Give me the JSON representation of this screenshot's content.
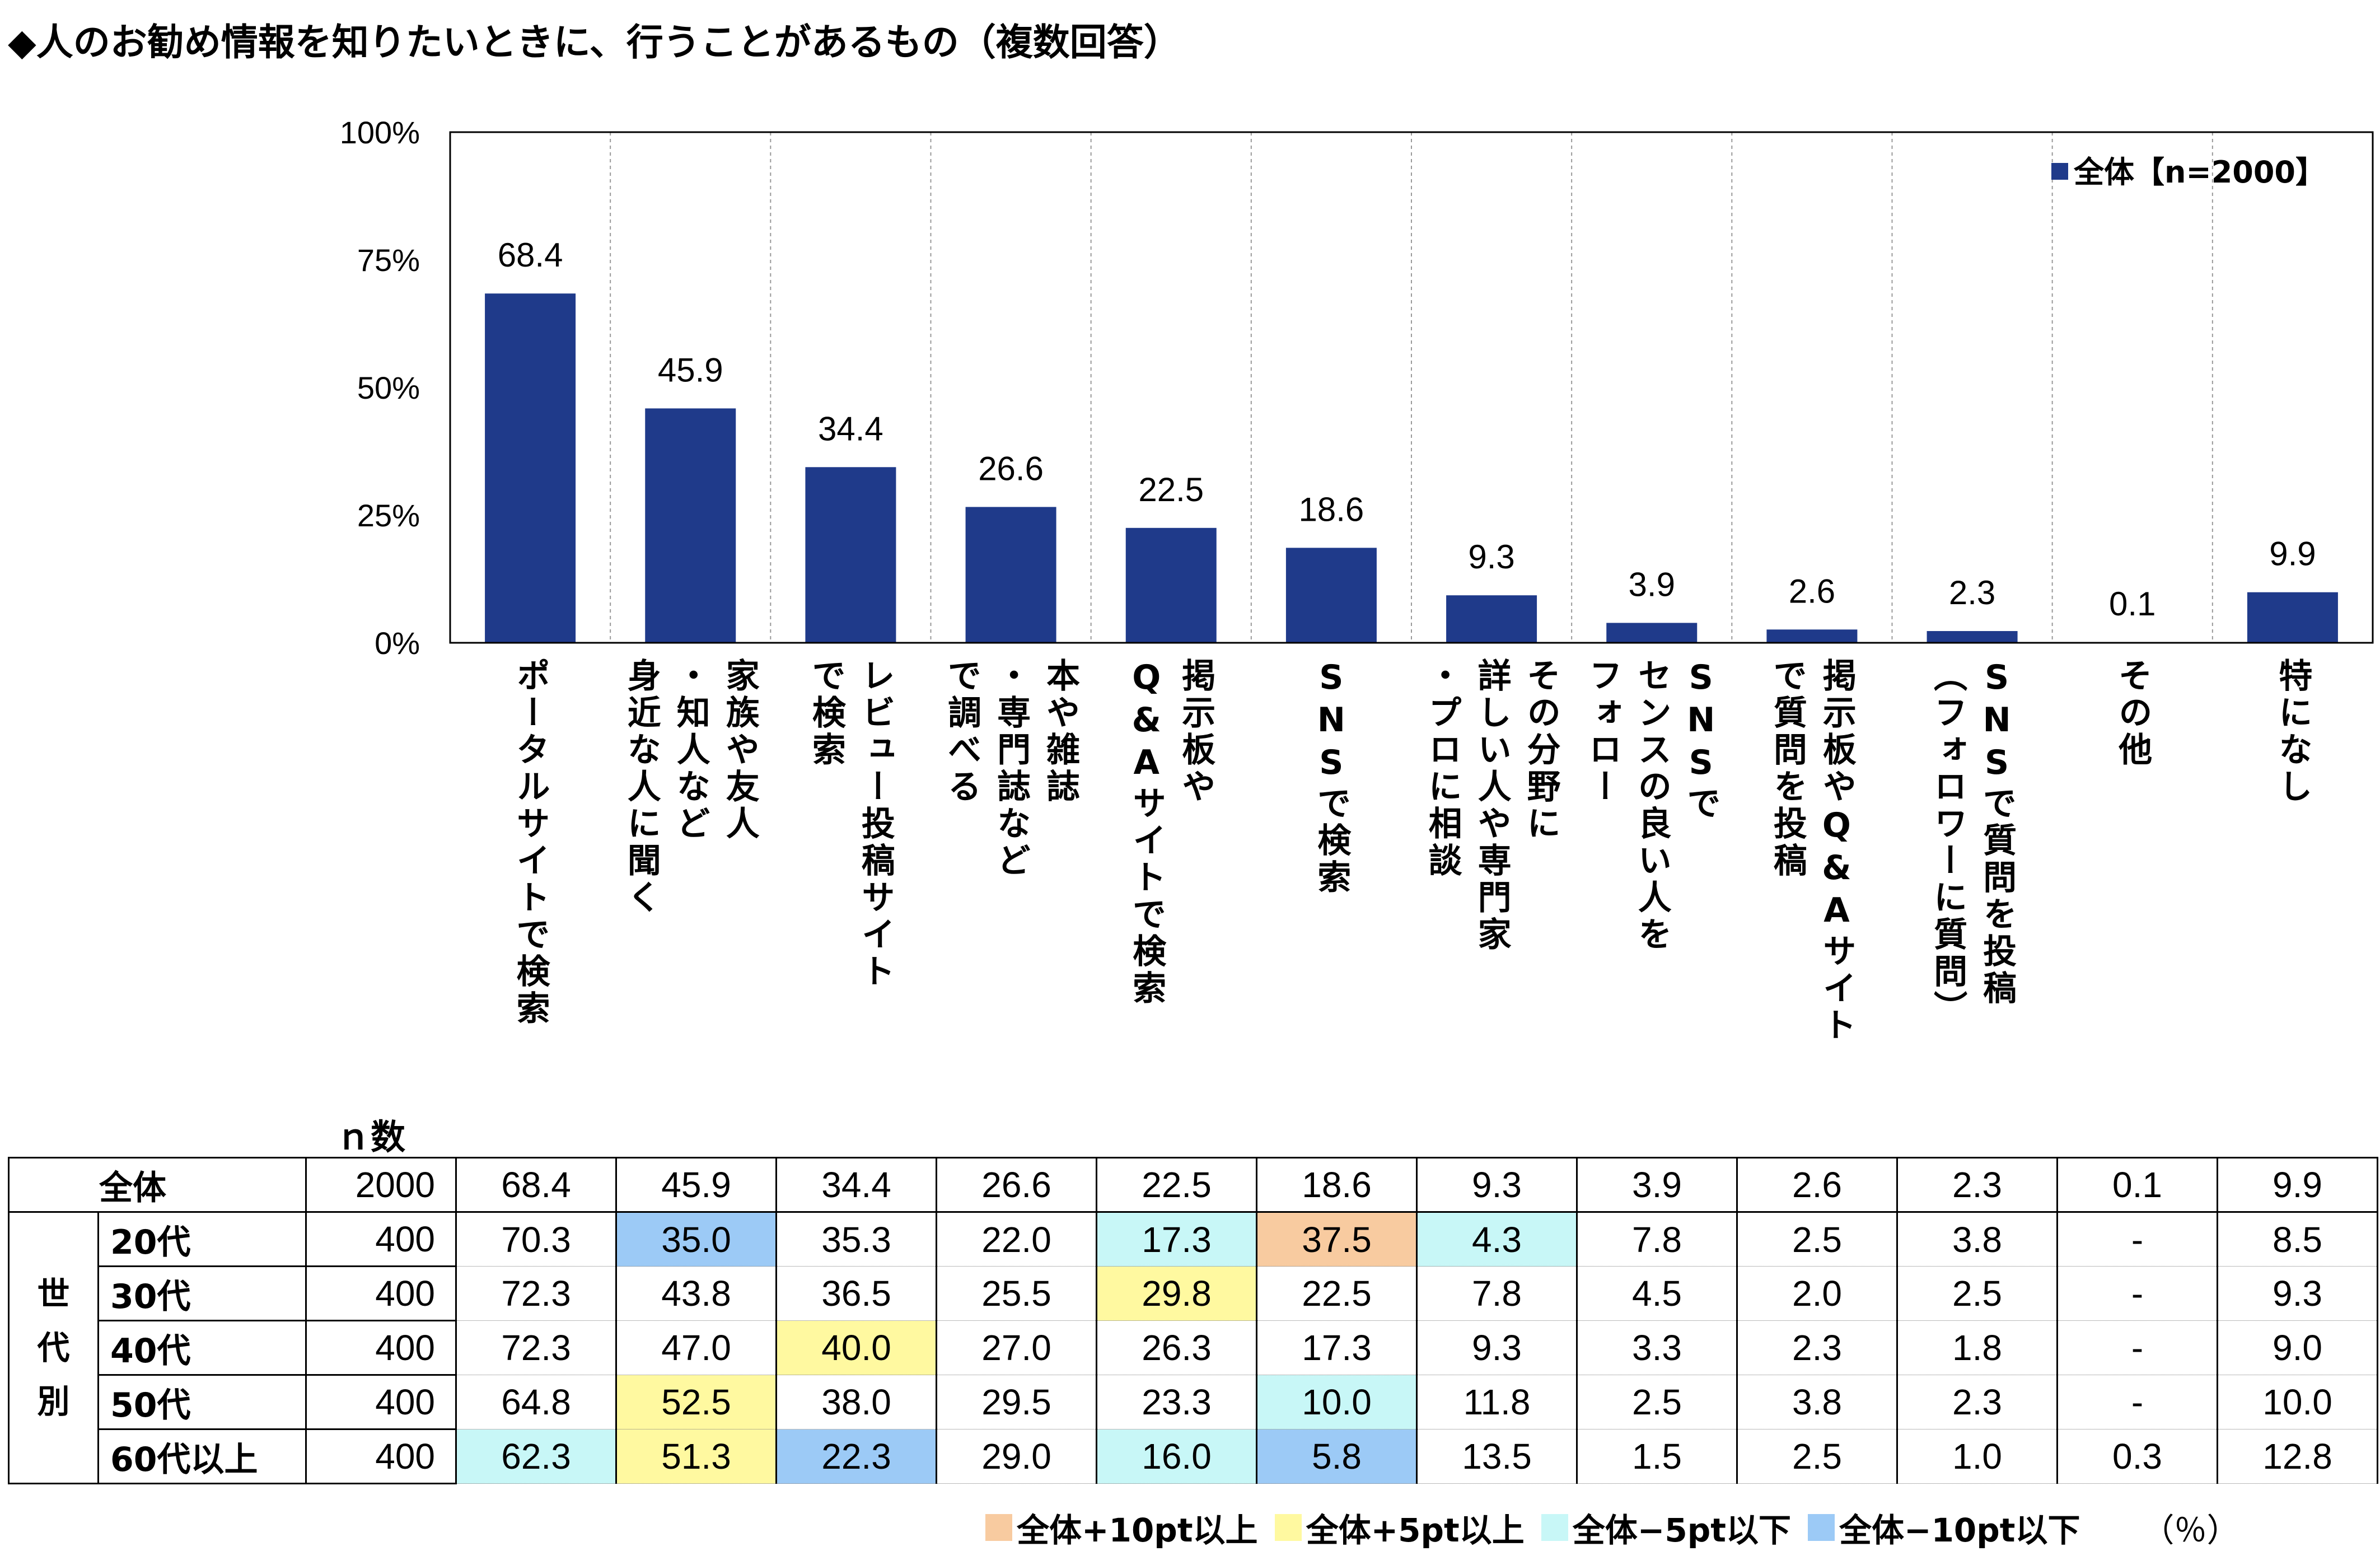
{
  "title": "◆人のお勧め情報を知りたいときに、行うことがあるもの（複数回答）",
  "chart_data": {
    "type": "bar",
    "title": "◆人のお勧め情報を知りたいときに、行うことがあるもの（複数回答）",
    "ylim": [
      0,
      100
    ],
    "y_ticks": [
      "100%",
      "75%",
      "50%",
      "25%",
      "0%"
    ],
    "grid": "vertical dotted separators",
    "legend": {
      "placement": "top-right",
      "label": "全体【n=2000】"
    },
    "bar_color": "#1f3a8a",
    "categories": [
      "ポータルサイトで検索",
      "家族や友人・知人など身近な人に聞く",
      "レビュー投稿サイトで検索",
      "本や雑誌・専門誌などで調べる",
      "掲示板やQ&Aサイトで検索",
      "SNSで検索",
      "その分野に詳しい人や専門家・プロに相談",
      "SNSでセンスの良い人をフォロー",
      "掲示板やQ&Aサイトで質問を投稿",
      "SNSで質問を投稿（フォロワーに質問）",
      "その他",
      "特になし"
    ],
    "category_lines": [
      [
        "ポータルサイトで検索"
      ],
      [
        "家族や友人",
        "・知人など",
        "身近な人に聞く"
      ],
      [
        "レビュー投稿サイト",
        "で検索"
      ],
      [
        "本や雑誌",
        "・専門誌など",
        "で調べる"
      ],
      [
        "掲示板や",
        "Q&Aサイトで検索"
      ],
      [
        "SNSで検索"
      ],
      [
        "その分野に",
        "詳しい人や専門家",
        "・プロに相談"
      ],
      [
        "SNSで",
        "センスの良い人を",
        "フォロー"
      ],
      [
        "掲示板やQ&Aサイト",
        "で質問を投稿"
      ],
      [
        "SNSで質問を投稿",
        "（フォロワーに質問）"
      ],
      [
        "その他"
      ],
      [
        "特になし"
      ]
    ],
    "series": [
      {
        "name": "全体【n=2000】",
        "values": [
          68.4,
          45.9,
          34.4,
          26.6,
          22.5,
          18.6,
          9.3,
          3.9,
          2.6,
          2.3,
          0.1,
          9.9
        ]
      }
    ]
  },
  "table": {
    "n_header": "ｎ数",
    "group_label": "世代別",
    "total_row": {
      "label": "全体",
      "n": "2000",
      "values": [
        "68.4",
        "45.9",
        "34.4",
        "26.6",
        "22.5",
        "18.6",
        "9.3",
        "3.9",
        "2.6",
        "2.3",
        "0.1",
        "9.9"
      ]
    },
    "rows": [
      {
        "label": "20代",
        "n": "400",
        "values": [
          "70.3",
          "35.0",
          "35.3",
          "22.0",
          "17.3",
          "37.5",
          "4.3",
          "7.8",
          "2.5",
          "3.8",
          "-",
          "8.5"
        ],
        "highlights": [
          "",
          "blue",
          "",
          "",
          "cyan",
          "orange",
          "cyan",
          "",
          "",
          "",
          "",
          ""
        ]
      },
      {
        "label": "30代",
        "n": "400",
        "values": [
          "72.3",
          "43.8",
          "36.5",
          "25.5",
          "29.8",
          "22.5",
          "7.8",
          "4.5",
          "2.0",
          "2.5",
          "-",
          "9.3"
        ],
        "highlights": [
          "",
          "",
          "",
          "",
          "yellow",
          "",
          "",
          "",
          "",
          "",
          "",
          ""
        ]
      },
      {
        "label": "40代",
        "n": "400",
        "values": [
          "72.3",
          "47.0",
          "40.0",
          "27.0",
          "26.3",
          "17.3",
          "9.3",
          "3.3",
          "2.3",
          "1.8",
          "-",
          "9.0"
        ],
        "highlights": [
          "",
          "",
          "yellow",
          "",
          "",
          "",
          "",
          "",
          "",
          "",
          "",
          ""
        ]
      },
      {
        "label": "50代",
        "n": "400",
        "values": [
          "64.8",
          "52.5",
          "38.0",
          "29.5",
          "23.3",
          "10.0",
          "11.8",
          "2.5",
          "3.8",
          "2.3",
          "-",
          "10.0"
        ],
        "highlights": [
          "",
          "yellow",
          "",
          "",
          "",
          "cyan",
          "",
          "",
          "",
          "",
          "",
          ""
        ]
      },
      {
        "label": "60代以上",
        "n": "400",
        "values": [
          "62.3",
          "51.3",
          "22.3",
          "29.0",
          "16.0",
          "5.8",
          "13.5",
          "1.5",
          "2.5",
          "1.0",
          "0.3",
          "12.8"
        ],
        "highlights": [
          "cyan",
          "yellow",
          "blue",
          "",
          "cyan",
          "blue",
          "",
          "",
          "",
          "",
          "",
          ""
        ]
      }
    ]
  },
  "footer_legend": [
    {
      "label": "全体+10pt以上",
      "color": "#f8cba0"
    },
    {
      "label": "全体+5pt以上",
      "color": "#fff9a0"
    },
    {
      "label": "全体−5pt以下",
      "color": "#c8f7f7"
    },
    {
      "label": "全体−10pt以下",
      "color": "#9ccaf6"
    }
  ],
  "unit": "（％）"
}
